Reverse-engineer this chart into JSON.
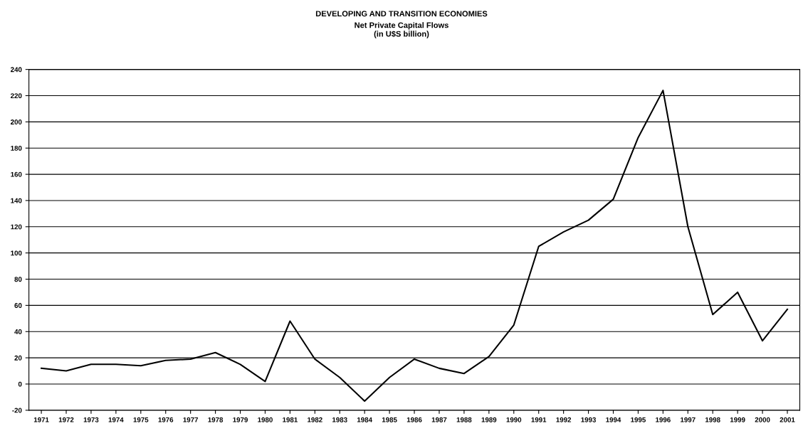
{
  "chart_data": {
    "type": "line",
    "title": "DEVELOPING AND TRANSITION ECONOMIES",
    "subtitle": "Net Private Capital Flows\n(in U$S billion)",
    "categories": [
      "1971",
      "1972",
      "1973",
      "1974",
      "1975",
      "1976",
      "1977",
      "1978",
      "1979",
      "1980",
      "1981",
      "1982",
      "1983",
      "1984",
      "1985",
      "1986",
      "1987",
      "1988",
      "1989",
      "1990",
      "1991",
      "1992",
      "1993",
      "1994",
      "1995",
      "1996",
      "1997",
      "1998",
      "1999",
      "2000",
      "2001"
    ],
    "series": [
      {
        "color": "#000000",
        "values": [
          12,
          10,
          15,
          15,
          14,
          18,
          19,
          24,
          15,
          2,
          48,
          19,
          5,
          -13,
          5,
          19,
          12,
          8,
          21,
          45,
          105,
          116,
          125,
          141,
          188,
          224,
          120,
          53,
          70,
          33,
          57
        ]
      }
    ],
    "ylim": [
      -20,
      240
    ],
    "yticks": [
      -20,
      0,
      20,
      40,
      60,
      80,
      100,
      120,
      140,
      160,
      180,
      200,
      220,
      240
    ],
    "grid": "y",
    "legend": false,
    "marker": "none",
    "line_style": "solid"
  }
}
